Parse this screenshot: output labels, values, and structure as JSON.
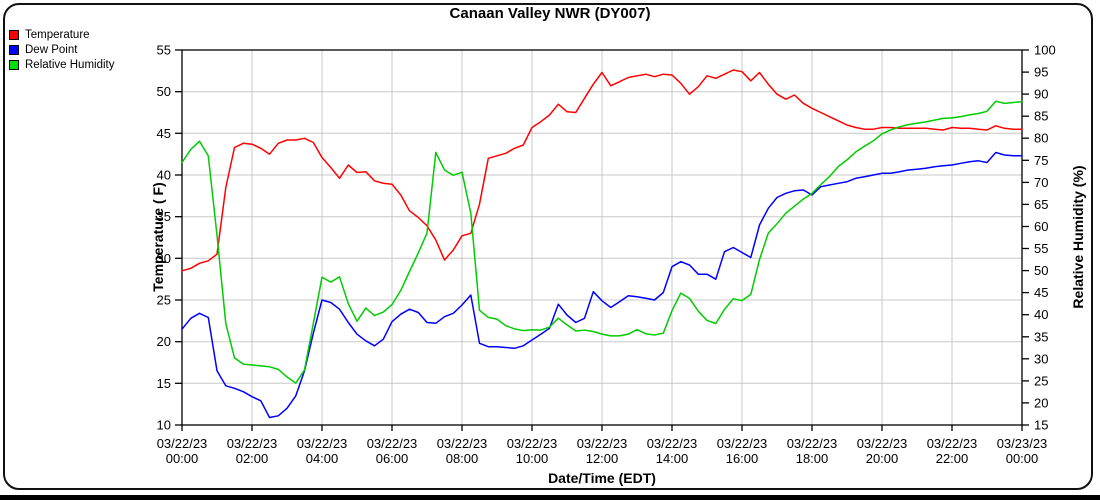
{
  "legend": {
    "items": [
      {
        "label": "Temperature",
        "color": "#ff0000"
      },
      {
        "label": "Dew Point",
        "color": "#0000ff"
      },
      {
        "label": "Relative Humidity",
        "color": "#00e000"
      }
    ]
  },
  "chart_data": {
    "type": "line",
    "title": "Canaan Valley NWR (DY007)",
    "xlabel": "Date/Time (EDT)",
    "ylabel_left": "Temperature ( F)",
    "ylabel_right": "Relative Humidity (%)",
    "grid": true,
    "legend_position": "top-left",
    "ylim_left": [
      10,
      55
    ],
    "ylim_right": [
      15,
      100
    ],
    "y_tick_step": 5,
    "x_range_hours": 24,
    "sample_interval_minutes": 15,
    "x_ticks": [
      {
        "date": "03/22/23",
        "time": "00:00"
      },
      {
        "date": "03/22/23",
        "time": "02:00"
      },
      {
        "date": "03/22/23",
        "time": "04:00"
      },
      {
        "date": "03/22/23",
        "time": "06:00"
      },
      {
        "date": "03/22/23",
        "time": "08:00"
      },
      {
        "date": "03/22/23",
        "time": "10:00"
      },
      {
        "date": "03/22/23",
        "time": "12:00"
      },
      {
        "date": "03/22/23",
        "time": "14:00"
      },
      {
        "date": "03/22/23",
        "time": "16:00"
      },
      {
        "date": "03/22/23",
        "time": "18:00"
      },
      {
        "date": "03/22/23",
        "time": "20:00"
      },
      {
        "date": "03/22/23",
        "time": "22:00"
      },
      {
        "date": "03/23/23",
        "time": "00:00"
      }
    ],
    "series": [
      {
        "name": "Temperature",
        "axis": "left",
        "unit": "F",
        "color": "#ff0000",
        "values": [
          28.5,
          28.8,
          29.4,
          29.7,
          30.5,
          38.5,
          43.3,
          43.8,
          43.7,
          43.2,
          42.5,
          43.8,
          44.2,
          44.2,
          44.4,
          43.9,
          42.1,
          40.9,
          39.6,
          41.2,
          40.3,
          40.4,
          39.3,
          39.0,
          38.9,
          37.6,
          35.7,
          34.9,
          33.9,
          32.2,
          29.8,
          31.0,
          32.7,
          33.0,
          36.5,
          42.0,
          42.3,
          42.6,
          43.2,
          43.6,
          45.7,
          46.4,
          47.2,
          48.5,
          47.6,
          47.5,
          49.2,
          50.9,
          52.3,
          50.7,
          51.2,
          51.7,
          51.9,
          52.1,
          51.8,
          52.1,
          52.0,
          51.0,
          49.7,
          50.6,
          51.9,
          51.6,
          52.1,
          52.6,
          52.4,
          51.3,
          52.3,
          50.9,
          49.7,
          49.1,
          49.6,
          48.6,
          48.0,
          47.5,
          47.0,
          46.5,
          46.0,
          45.7,
          45.5,
          45.5,
          45.7,
          45.7,
          45.6,
          45.6,
          45.6,
          45.6,
          45.5,
          45.4,
          45.7,
          45.6,
          45.6,
          45.5,
          45.4,
          45.9,
          45.6,
          45.5,
          45.5
        ]
      },
      {
        "name": "Dew Point",
        "axis": "left",
        "unit": "F",
        "color": "#0000ff",
        "values": [
          21.5,
          22.8,
          23.4,
          22.9,
          16.5,
          14.7,
          14.4,
          14.0,
          13.4,
          12.9,
          10.9,
          11.1,
          12.0,
          13.5,
          16.5,
          21.0,
          25.0,
          24.7,
          23.9,
          22.3,
          20.9,
          20.1,
          19.5,
          20.3,
          22.4,
          23.3,
          23.9,
          23.5,
          22.3,
          22.2,
          23.0,
          23.4,
          24.4,
          25.6,
          19.8,
          19.4,
          19.4,
          19.3,
          19.2,
          19.5,
          20.2,
          20.9,
          21.6,
          24.5,
          23.2,
          22.3,
          22.8,
          26.0,
          24.9,
          24.1,
          24.8,
          25.5,
          25.4,
          25.2,
          25.0,
          25.9,
          29.0,
          29.6,
          29.2,
          28.1,
          28.1,
          27.5,
          30.8,
          31.3,
          30.7,
          30.1,
          34.0,
          36.0,
          37.3,
          37.8,
          38.1,
          38.2,
          37.6,
          38.6,
          38.8,
          39.0,
          39.2,
          39.6,
          39.8,
          40.0,
          40.2,
          40.2,
          40.4,
          40.6,
          40.7,
          40.8,
          41.0,
          41.1,
          41.2,
          41.4,
          41.6,
          41.7,
          41.5,
          42.7,
          42.4,
          42.3,
          42.3
        ]
      },
      {
        "name": "Relative Humidity",
        "axis": "right",
        "unit": "%",
        "color": "#00cc00",
        "values": [
          74.5,
          77.5,
          79.3,
          76.0,
          58.0,
          38.0,
          30.2,
          28.8,
          28.6,
          28.4,
          28.2,
          27.6,
          25.9,
          24.5,
          27.5,
          38.0,
          48.5,
          47.4,
          48.6,
          42.5,
          38.5,
          41.5,
          39.8,
          40.6,
          42.3,
          45.5,
          49.8,
          54.0,
          58.5,
          76.8,
          72.8,
          71.6,
          72.3,
          63.0,
          41.0,
          39.4,
          39.0,
          37.5,
          36.8,
          36.4,
          36.6,
          36.5,
          37.2,
          39.2,
          37.7,
          36.3,
          36.5,
          36.2,
          35.6,
          35.2,
          35.2,
          35.6,
          36.6,
          35.7,
          35.4,
          35.8,
          40.9,
          44.9,
          43.7,
          40.8,
          38.7,
          38.0,
          41.2,
          43.6,
          43.2,
          44.6,
          52.5,
          58.5,
          60.6,
          63.0,
          64.6,
          66.2,
          67.5,
          69.5,
          71.3,
          73.6,
          75.1,
          76.9,
          78.2,
          79.4,
          81.0,
          81.9,
          82.6,
          83.1,
          83.4,
          83.7,
          84.1,
          84.5,
          84.6,
          84.9,
          85.3,
          85.6,
          86.1,
          88.4,
          87.9,
          88.1,
          88.3
        ]
      }
    ]
  }
}
